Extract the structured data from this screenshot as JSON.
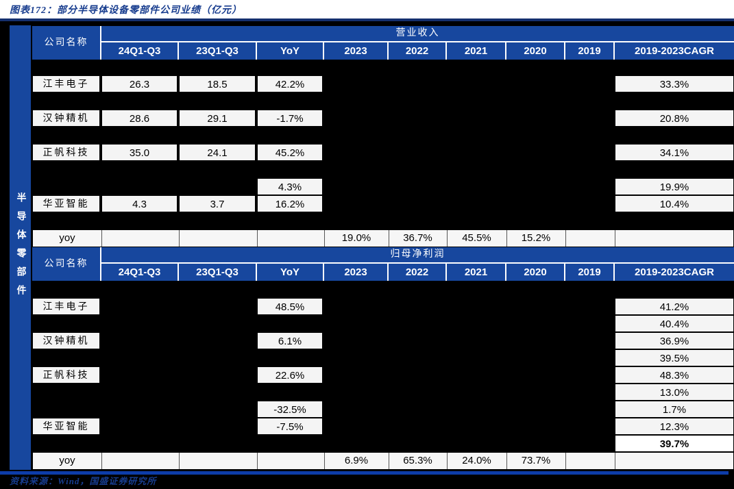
{
  "title": "图表172：部分半导体设备零部件公司业绩（亿元）",
  "source_note": "资料来源：Wind，国盛证券研究所",
  "sidebar": {
    "label": "半导体零部件"
  },
  "colors": {
    "header_blue": "#17479E",
    "title_navy": "#173C8E",
    "rule_navy": "#142F6E",
    "footer_rule_blue": "#0D3CA8",
    "cell_bg": "#F4F4F4",
    "page_black": "#000000"
  },
  "columns": [
    "24Q1-Q3",
    "23Q1-Q3",
    "YoY",
    "2023",
    "2022",
    "2021",
    "2020",
    "2019",
    "2019-2023CAGR"
  ],
  "sections": [
    {
      "id": "revenue",
      "group_label": "营业收入",
      "company_label": "公司名称",
      "rows": [
        {
          "t": "gap"
        },
        {
          "t": "d",
          "name": "江丰电子",
          "q24": "26.3",
          "q23": "18.5",
          "yoy": "42.2%",
          "cagr": "33.3%"
        },
        {
          "t": "gap"
        },
        {
          "t": "d",
          "name": "汉钟精机",
          "q24": "28.6",
          "q23": "29.1",
          "yoy": "-1.7%",
          "cagr": "20.8%"
        },
        {
          "t": "gap"
        },
        {
          "t": "d",
          "name": "正帆科技",
          "q24": "35.0",
          "q23": "24.1",
          "yoy": "45.2%",
          "cagr": "34.1%"
        },
        {
          "t": "gap"
        },
        {
          "t": "d",
          "yoy": "4.3%",
          "cagr": "19.9%"
        },
        {
          "t": "d",
          "name": "华亚智能",
          "q24": "4.3",
          "q23": "3.7",
          "yoy": "16.2%",
          "cagr": "10.4%"
        },
        {
          "t": "gap"
        },
        {
          "t": "y",
          "label": "yoy",
          "y2023": "19.0%",
          "y2022": "36.7%",
          "y2021": "45.5%",
          "y2020": "15.2%"
        }
      ]
    },
    {
      "id": "net-profit",
      "group_label": "归母净利润",
      "company_label": "公司名称",
      "rows": [
        {
          "t": "gap"
        },
        {
          "t": "d",
          "name": "江丰电子",
          "yoy": "48.5%",
          "cagr": "41.2%"
        },
        {
          "t": "d",
          "cagr": "40.4%"
        },
        {
          "t": "d",
          "name": "汉钟精机",
          "yoy": "6.1%",
          "cagr": "36.9%"
        },
        {
          "t": "d",
          "cagr": "39.5%"
        },
        {
          "t": "d",
          "name": "正帆科技",
          "yoy": "22.6%",
          "cagr": "48.3%"
        },
        {
          "t": "d",
          "cagr": "13.0%"
        },
        {
          "t": "d",
          "yoy": "-32.5%",
          "cagr": "1.7%"
        },
        {
          "t": "d",
          "name": "华亚智能",
          "yoy": "-7.5%",
          "cagr": "12.3%"
        },
        {
          "t": "d",
          "cagr": "39.7%",
          "bold": true
        },
        {
          "t": "y",
          "label": "yoy",
          "y2023": "6.9%",
          "y2022": "65.3%",
          "y2021": "24.0%",
          "y2020": "73.7%"
        }
      ]
    }
  ]
}
